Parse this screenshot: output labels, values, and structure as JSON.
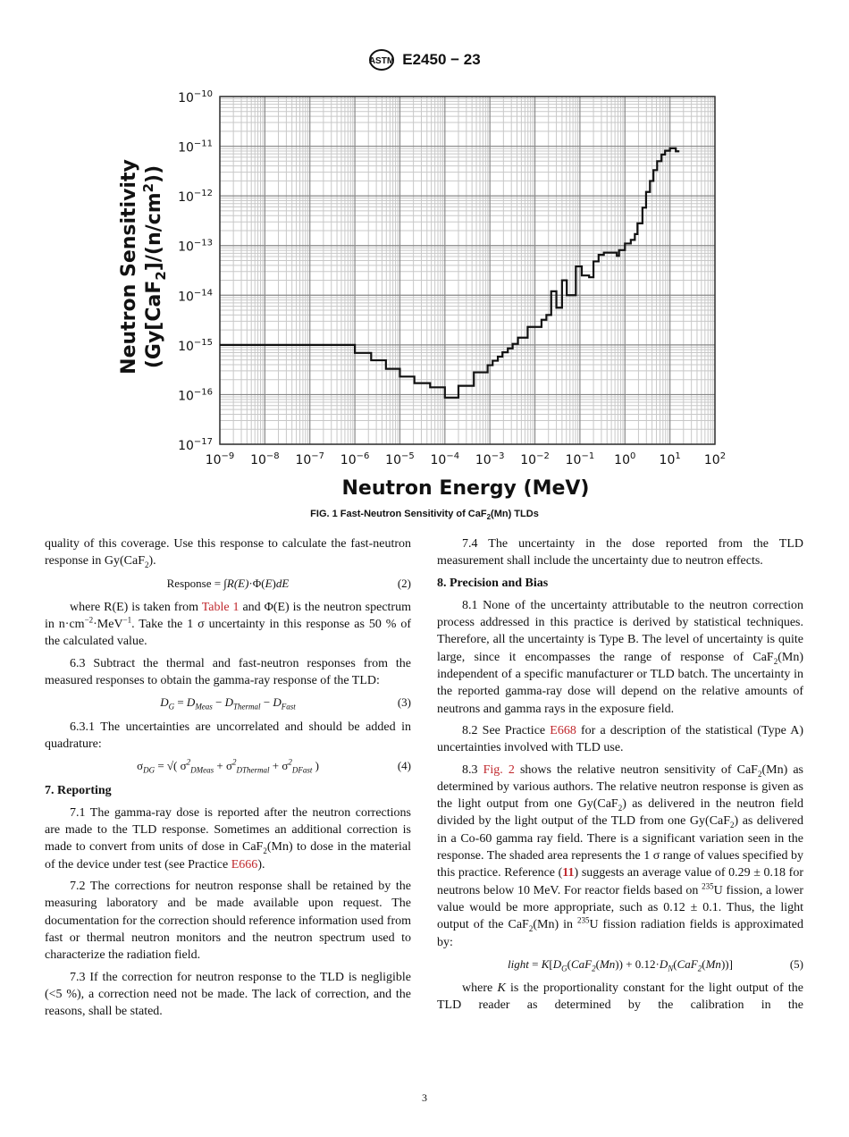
{
  "header": {
    "logo_text": "ASTM",
    "doc_id": "E2450 − 23"
  },
  "chart_data": {
    "type": "line",
    "style": "step",
    "xlabel": "Neutron Energy (MeV)",
    "ylabel": "Neutron Sensitivity (Gy[CaF2]/(n/cm2))",
    "ylabel_parts": {
      "line1": "Neutron Sensitivity",
      "line2a": "(Gy[CaF",
      "line2sub": "2",
      "line2b": "]/(n/cm",
      "line2sup": "2",
      "line2c": "))"
    },
    "xscale": "log",
    "yscale": "log",
    "xlim": [
      1e-09,
      100
    ],
    "ylim": [
      1e-17,
      1e-10
    ],
    "xticks": [
      {
        "base": "10",
        "exp": "−9"
      },
      {
        "base": "10",
        "exp": "−8"
      },
      {
        "base": "10",
        "exp": "−7"
      },
      {
        "base": "10",
        "exp": "−6"
      },
      {
        "base": "10",
        "exp": "−5"
      },
      {
        "base": "10",
        "exp": "−4"
      },
      {
        "base": "10",
        "exp": "−3"
      },
      {
        "base": "10",
        "exp": "−2"
      },
      {
        "base": "10",
        "exp": "−1"
      },
      {
        "base": "10",
        "exp": "0"
      },
      {
        "base": "10",
        "exp": "1"
      },
      {
        "base": "10",
        "exp": "2"
      }
    ],
    "yticks": [
      {
        "base": "10",
        "exp": "−10"
      },
      {
        "base": "10",
        "exp": "−11"
      },
      {
        "base": "10",
        "exp": "−12"
      },
      {
        "base": "10",
        "exp": "−13"
      },
      {
        "base": "10",
        "exp": "−14"
      },
      {
        "base": "10",
        "exp": "−15"
      },
      {
        "base": "10",
        "exp": "−16"
      },
      {
        "base": "10",
        "exp": "−17"
      }
    ],
    "grid": true,
    "line_color": "#111111",
    "points": [
      [
        1e-09,
        1e-15
      ],
      [
        1e-06,
        6.9e-16
      ],
      [
        2.3e-06,
        4.9e-16
      ],
      [
        4.9e-06,
        3.3e-16
      ],
      [
        1e-05,
        2.3e-16
      ],
      [
        2.1e-05,
        1.7e-16
      ],
      [
        4.7e-05,
        1.4e-16
      ],
      [
        0.0001,
        8.7e-17
      ],
      [
        0.0002,
        1.5e-16
      ],
      [
        0.00044,
        2.8e-16
      ],
      [
        0.00089,
        3.9e-16
      ],
      [
        0.00115,
        4.8e-16
      ],
      [
        0.0015,
        5.8e-16
      ],
      [
        0.0019,
        7.1e-16
      ],
      [
        0.0025,
        8.5e-16
      ],
      [
        0.0032,
        1.05e-15
      ],
      [
        0.0042,
        1.4e-15
      ],
      [
        0.0069,
        2.3e-15
      ],
      [
        0.014,
        3.2e-15
      ],
      [
        0.018,
        4e-15
      ],
      [
        0.023,
        1.2e-14
      ],
      [
        0.03,
        5.6e-15
      ],
      [
        0.04,
        2e-14
      ],
      [
        0.051,
        1e-14
      ],
      [
        0.081,
        3.8e-14
      ],
      [
        0.11,
        2.5e-14
      ],
      [
        0.16,
        2.3e-14
      ],
      [
        0.2,
        4.8e-14
      ],
      [
        0.26,
        6.5e-14
      ],
      [
        0.34,
        7.2e-14
      ],
      [
        0.66,
        6.2e-14
      ],
      [
        0.74,
        8.1e-14
      ],
      [
        1.0,
        1.1e-13
      ],
      [
        1.35,
        1.3e-13
      ],
      [
        1.66,
        1.7e-13
      ],
      [
        1.9,
        2.8e-13
      ],
      [
        2.45,
        5.8e-13
      ],
      [
        2.95,
        1.2e-12
      ],
      [
        3.6,
        2e-12
      ],
      [
        4.3,
        3.3e-12
      ],
      [
        5.2,
        5e-12
      ],
      [
        6.5,
        6.8e-12
      ],
      [
        7.8,
        8.1e-12
      ],
      [
        10,
        9.1e-12
      ],
      [
        13.5,
        7.9e-12
      ]
    ]
  },
  "caption": {
    "a": "FIG. 1 Fast-Neutron Sensitivity of CaF",
    "sub": "2",
    "b": "(Mn) TLDs"
  },
  "left_column": [
    {
      "kind": "p",
      "noind": true,
      "segs": [
        [
          "",
          "quality of this coverage. Use this response to calculate the fast-neutron response in Gy(CaF"
        ],
        [
          "sub",
          "2"
        ],
        [
          "",
          "). "
        ]
      ]
    },
    {
      "kind": "eq",
      "num": "(2)",
      "segs": [
        [
          "up",
          "Response = ∫"
        ],
        [
          "",
          "R(E)"
        ],
        [
          "up",
          "·Φ("
        ],
        [
          "",
          "E"
        ],
        [
          "up",
          ")"
        ],
        [
          "",
          "dE"
        ]
      ]
    },
    {
      "kind": "p",
      "segs": [
        [
          "",
          "where R(E) is taken from "
        ],
        [
          "link",
          "Table 1"
        ],
        [
          "",
          " and Φ(E) is the neutron spectrum in n·cm"
        ],
        [
          "sup",
          "−2"
        ],
        [
          "",
          "·MeV"
        ],
        [
          "sup",
          "−1"
        ],
        [
          "",
          ". Take the 1 σ uncertainty in this response as 50 % of the calculated value."
        ]
      ]
    },
    {
      "kind": "p",
      "segs": [
        [
          "",
          "6.3 Subtract the thermal and fast-neutron responses from the measured responses to obtain the gamma-ray response of the TLD:"
        ]
      ]
    },
    {
      "kind": "eq",
      "num": "(3)",
      "segs": [
        [
          "",
          "D"
        ],
        [
          "sub",
          "G"
        ],
        [
          "up",
          " = "
        ],
        [
          "",
          "D"
        ],
        [
          "sub",
          "Meas"
        ],
        [
          "up",
          " − "
        ],
        [
          "",
          "D"
        ],
        [
          "sub",
          "Thermal"
        ],
        [
          "up",
          " − "
        ],
        [
          "",
          "D"
        ],
        [
          "sub",
          "Fast"
        ]
      ]
    },
    {
      "kind": "p",
      "segs": [
        [
          "",
          "6.3.1 The uncertainties are uncorrelated and should be added in quadrature:"
        ]
      ]
    },
    {
      "kind": "eq",
      "num": "(4)",
      "segs": [
        [
          "up",
          "σ"
        ],
        [
          "sub",
          "DG"
        ],
        [
          "up",
          " = √( σ"
        ],
        [
          "sup",
          "2"
        ],
        [
          "sub",
          "DMeas"
        ],
        [
          "up",
          " + σ"
        ],
        [
          "sup",
          "2"
        ],
        [
          "sub",
          "DThermal"
        ],
        [
          "up",
          " + σ"
        ],
        [
          "sup",
          "2"
        ],
        [
          "sub",
          "DFast"
        ],
        [
          "up",
          " )"
        ]
      ]
    },
    {
      "kind": "h",
      "segs": [
        [
          "",
          "7. Reporting"
        ]
      ]
    },
    {
      "kind": "p",
      "segs": [
        [
          "",
          "7.1 The gamma-ray dose is reported after the neutron corrections are made to the TLD response. Sometimes an additional correction is made to convert from units of dose in CaF"
        ],
        [
          "sub",
          "2"
        ],
        [
          "",
          "(Mn) to dose in the material of the device under test (see Practice "
        ],
        [
          "link",
          "E666"
        ],
        [
          "",
          ")."
        ]
      ]
    },
    {
      "kind": "p",
      "segs": [
        [
          "",
          "7.2 The corrections for neutron response shall be retained by the measuring laboratory and be made available upon request. The documentation for the correction should reference information used from fast or thermal neutron monitors and the neutron spectrum used to characterize the radiation field."
        ]
      ]
    },
    {
      "kind": "p",
      "segs": [
        [
          "",
          "7.3 If the correction for neutron response to the TLD is negligible (<5 %), a correction need not be made. The lack of correction, and the reasons, shall be stated."
        ]
      ]
    }
  ],
  "right_column": [
    {
      "kind": "p",
      "segs": [
        [
          "",
          "7.4 The uncertainty in the dose reported from the TLD measurement shall include the uncertainty due to neutron effects."
        ]
      ]
    },
    {
      "kind": "h",
      "segs": [
        [
          "",
          "8. Precision and Bias"
        ]
      ]
    },
    {
      "kind": "p",
      "segs": [
        [
          "",
          "8.1 None of the uncertainty attributable to the neutron correction process addressed in this practice is derived by statistical techniques. Therefore, all the uncertainty is Type B. The level of uncertainty is quite large, since it encompasses the range of response of CaF"
        ],
        [
          "sub",
          "2"
        ],
        [
          "",
          "(Mn) independent of a specific manufacturer or TLD batch. The uncertainty in the reported gamma-ray dose will depend on the relative amounts of neutrons and gamma rays in the exposure field."
        ]
      ]
    },
    {
      "kind": "p",
      "segs": [
        [
          "",
          "8.2 See Practice "
        ],
        [
          "link",
          "E668"
        ],
        [
          "",
          " for a description of the statistical (Type A) uncertainties involved with TLD use."
        ]
      ]
    },
    {
      "kind": "p",
      "segs": [
        [
          "",
          "8.3 "
        ],
        [
          "link",
          "Fig. 2"
        ],
        [
          "",
          " shows the relative neutron sensitivity of CaF"
        ],
        [
          "sub",
          "2"
        ],
        [
          "",
          "(Mn) as determined by various authors. The relative neutron response is given as the light output from one Gy(CaF"
        ],
        [
          "sub",
          "2"
        ],
        [
          "",
          ") as delivered in the neutron field divided by the light output of the TLD from one Gy(CaF"
        ],
        [
          "sub",
          "2"
        ],
        [
          "",
          ") as delivered in a Co-60 gamma ray field. There is a significant variation seen in the response. The shaded area represents the 1 σ range of values specified by this practice. Reference ("
        ],
        [
          "blink",
          "11"
        ],
        [
          "",
          ") suggests an average value of 0.29 ± 0.18 for neutrons below 10 MeV. For reactor fields based on "
        ],
        [
          "sup",
          "235"
        ],
        [
          "",
          "U fission, a lower value would be more appropriate, such as 0.12 ± 0.1. Thus, the light output of the CaF"
        ],
        [
          "sub",
          "2"
        ],
        [
          "",
          "(Mn) in "
        ],
        [
          "sup",
          "235"
        ],
        [
          "",
          "U fission radiation fields is approximated by:"
        ]
      ]
    },
    {
      "kind": "eq",
      "num": "(5)",
      "segs": [
        [
          "",
          "light"
        ],
        [
          "up",
          " = "
        ],
        [
          "",
          "K"
        ],
        [
          "up",
          "["
        ],
        [
          "",
          "D"
        ],
        [
          "sub",
          "G"
        ],
        [
          "up",
          "("
        ],
        [
          "",
          "CaF"
        ],
        [
          "sub",
          "2"
        ],
        [
          "up",
          "("
        ],
        [
          "",
          "Mn"
        ],
        [
          "up",
          ")) + 0.12·"
        ],
        [
          "",
          "D"
        ],
        [
          "sub",
          "N"
        ],
        [
          "up",
          "("
        ],
        [
          "",
          "CaF"
        ],
        [
          "sub",
          "2"
        ],
        [
          "up",
          "("
        ],
        [
          "",
          "Mn"
        ],
        [
          "up",
          "))]"
        ]
      ]
    },
    {
      "kind": "p",
      "last": true,
      "segs": [
        [
          "",
          "where "
        ],
        [
          "i",
          "K"
        ],
        [
          "",
          " is the proportionality constant for the light output of the TLD reader as determined by the calibration in the"
        ]
      ]
    }
  ],
  "page_number": "3"
}
